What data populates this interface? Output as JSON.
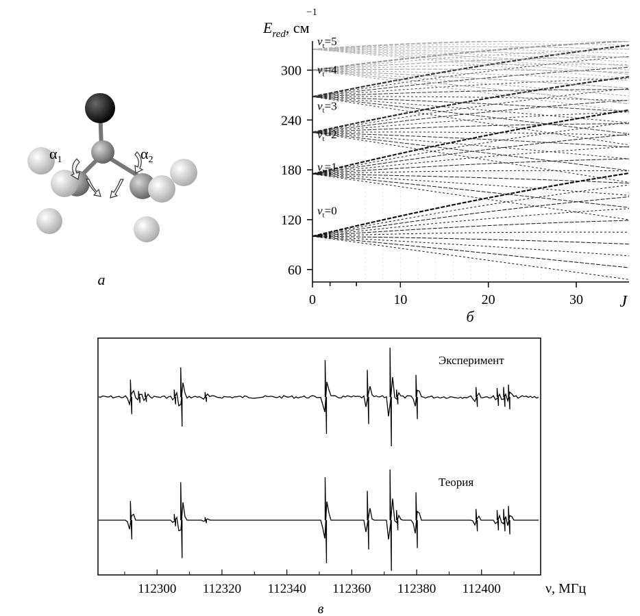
{
  "panel_a": {
    "label": "а",
    "alpha1": "α",
    "alpha1_sub": "1",
    "alpha2": "α",
    "alpha2_sub": "2",
    "colors": {
      "oxygen": "#111111",
      "carbon": "#8a8a8a",
      "hydrogen": "#ececec"
    }
  },
  "panel_b": {
    "label": "б",
    "ylabel_main": "E",
    "ylabel_sub": "red",
    "ylabel_unit": ", см",
    "ylabel_exp": "−1",
    "xlabel": "J",
    "yticks": [
      "60",
      "120",
      "180",
      "240",
      "300"
    ],
    "xticks": [
      "0",
      "10",
      "20",
      "30"
    ],
    "level_labels": [
      {
        "v": "v",
        "sub": "t",
        "eq": "=0"
      },
      {
        "v": "v",
        "sub": "t",
        "eq": "=1"
      },
      {
        "v": "v",
        "sub": "t",
        "eq": "=2"
      },
      {
        "v": "v",
        "sub": "t",
        "eq": "=3"
      },
      {
        "v": "v",
        "sub": "t",
        "eq": "=4"
      },
      {
        "v": "v",
        "sub": "t",
        "eq": "=5"
      }
    ]
  },
  "panel_c": {
    "label": "в",
    "xlabel": "ν, МГц",
    "xticks": [
      "112300",
      "112320",
      "112340",
      "112360",
      "112380",
      "112400"
    ],
    "experiment_label": "Эксперимент",
    "theory_label": "Теория"
  },
  "chart_data": [
    {
      "type": "scatter",
      "title": "",
      "xlabel": "J",
      "ylabel": "E_red, см−1",
      "xlim": [
        0,
        36
      ],
      "ylim": [
        45,
        335
      ],
      "grid": false,
      "series": [
        {
          "name": "vt=0",
          "start": [
            0,
            100
          ],
          "upper_branch_end": [
            36,
            176
          ],
          "lower_branch_end": [
            36,
            48
          ]
        },
        {
          "name": "vt=1",
          "start": [
            0,
            175
          ],
          "upper_branch_end": [
            36,
            252
          ],
          "lower_branch_end": [
            36,
            120
          ]
        },
        {
          "name": "vt=2",
          "start": [
            0,
            225
          ],
          "upper_branch_end": [
            36,
            292
          ],
          "lower_branch_end": [
            36,
            165
          ]
        },
        {
          "name": "vt=3",
          "start": [
            0,
            268
          ],
          "upper_branch_end": [
            36,
            330
          ],
          "lower_branch_end": [
            36,
            210
          ]
        },
        {
          "name": "vt=4",
          "start": [
            0,
            300
          ],
          "upper_branch_end": [
            36,
            335
          ],
          "lower_branch_end": [
            36,
            250
          ]
        },
        {
          "name": "vt=5",
          "start": [
            0,
            325
          ],
          "upper_branch_end": [
            36,
            335
          ],
          "lower_branch_end": [
            36,
            290
          ]
        }
      ]
    },
    {
      "type": "line",
      "title": "",
      "xlabel": "ν, МГц",
      "ylabel": "",
      "xlim": [
        112282,
        112418
      ],
      "series": [
        {
          "name": "Эксперимент",
          "lines": [
            {
              "x": 112292.0,
              "a": 0.35
            },
            {
              "x": 112294.5,
              "a": 0.12
            },
            {
              "x": 112296.5,
              "a": 0.1
            },
            {
              "x": 112305.5,
              "a": 0.15
            },
            {
              "x": 112307.5,
              "a": 0.6
            },
            {
              "x": 112315.0,
              "a": 0.1
            },
            {
              "x": 112352.0,
              "a": 0.75
            },
            {
              "x": 112365.0,
              "a": 0.55
            },
            {
              "x": 112372.0,
              "a": 1.0
            },
            {
              "x": 112374.0,
              "a": 0.15
            },
            {
              "x": 112380.0,
              "a": 0.45
            },
            {
              "x": 112398.5,
              "a": 0.2
            },
            {
              "x": 112405.0,
              "a": 0.18
            },
            {
              "x": 112407.0,
              "a": 0.2
            },
            {
              "x": 112408.5,
              "a": 0.25
            }
          ]
        },
        {
          "name": "Теория",
          "lines": [
            {
              "x": 112292.0,
              "a": 0.38
            },
            {
              "x": 112305.5,
              "a": 0.12
            },
            {
              "x": 112307.5,
              "a": 0.75
            },
            {
              "x": 112315.0,
              "a": 0.06
            },
            {
              "x": 112352.0,
              "a": 0.85
            },
            {
              "x": 112365.0,
              "a": 0.58
            },
            {
              "x": 112372.0,
              "a": 1.0
            },
            {
              "x": 112374.0,
              "a": 0.2
            },
            {
              "x": 112380.0,
              "a": 0.55
            },
            {
              "x": 112398.5,
              "a": 0.22
            },
            {
              "x": 112405.0,
              "a": 0.2
            },
            {
              "x": 112407.0,
              "a": 0.22
            },
            {
              "x": 112408.5,
              "a": 0.28
            }
          ]
        }
      ]
    }
  ]
}
